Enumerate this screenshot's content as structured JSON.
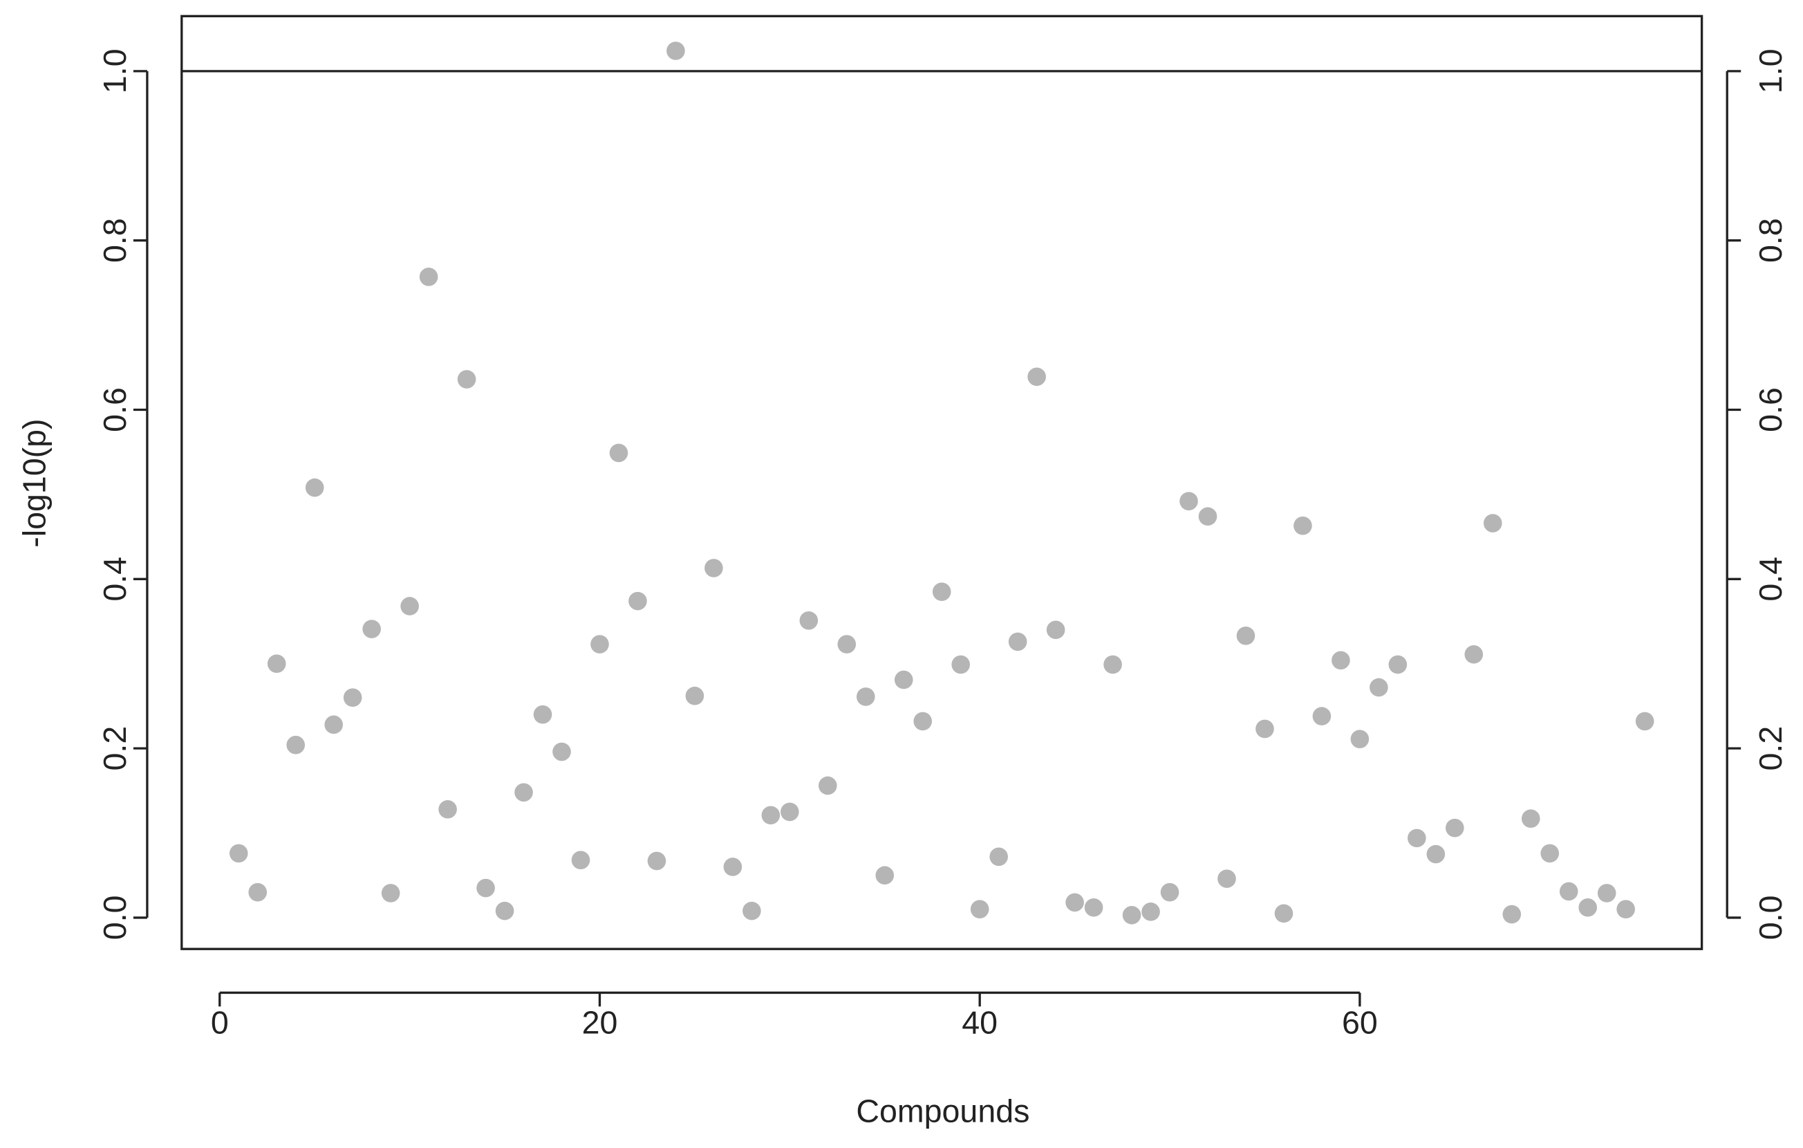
{
  "chart_data": {
    "type": "scatter",
    "xlabel": "Compounds",
    "ylabel": "-log10(p)",
    "x": [
      1,
      2,
      3,
      4,
      5,
      6,
      7,
      8,
      9,
      10,
      11,
      12,
      13,
      14,
      15,
      16,
      17,
      18,
      19,
      20,
      21,
      22,
      23,
      24,
      25,
      26,
      27,
      28,
      29,
      30,
      31,
      32,
      33,
      34,
      35,
      36,
      37,
      38,
      39,
      40,
      41,
      42,
      43,
      44,
      45,
      46,
      47,
      48,
      49,
      50,
      51,
      52,
      53,
      54,
      55,
      56,
      57,
      58,
      59,
      60,
      61,
      62,
      63,
      64,
      65,
      66,
      67,
      68,
      69,
      70,
      71,
      72,
      73,
      74,
      75
    ],
    "values": [
      0.076,
      0.03,
      0.3,
      0.204,
      0.508,
      0.228,
      0.26,
      0.341,
      0.029,
      0.368,
      0.757,
      0.128,
      0.636,
      0.035,
      0.008,
      0.148,
      0.24,
      0.196,
      0.068,
      0.323,
      0.549,
      0.374,
      0.067,
      1.024,
      0.262,
      0.413,
      0.06,
      0.008,
      0.121,
      0.125,
      0.351,
      0.156,
      0.323,
      0.261,
      0.05,
      0.281,
      0.232,
      0.385,
      0.299,
      0.01,
      0.072,
      0.326,
      0.639,
      0.34,
      0.018,
      0.012,
      0.299,
      0.003,
      0.007,
      0.03,
      0.492,
      0.474,
      0.046,
      0.333,
      0.223,
      0.005,
      0.463,
      0.238,
      0.304,
      0.211,
      0.272,
      0.299,
      0.094,
      0.075,
      0.106,
      0.311,
      0.466,
      0.004,
      0.117,
      0.076,
      0.031,
      0.012,
      0.029,
      0.01,
      0.232
    ],
    "color": "#b5b5b5",
    "xlim": [
      -2,
      78
    ],
    "xticks": [
      0,
      20,
      40,
      60
    ],
    "ylim": [
      -0.037,
      1.065
    ],
    "yticks": [
      {
        "value": 0,
        "label": "0.0"
      },
      0.2,
      0.4,
      0.6,
      0.8,
      {
        "value": 1,
        "label": "1.0"
      }
    ],
    "y2lim": [
      -0.037,
      1.065
    ],
    "y2ticks": [
      {
        "value": 0,
        "label": "0.0"
      },
      0.2,
      0.4,
      0.6,
      0.8,
      {
        "value": 1,
        "label": "1.0"
      }
    ],
    "hline": 1
  }
}
